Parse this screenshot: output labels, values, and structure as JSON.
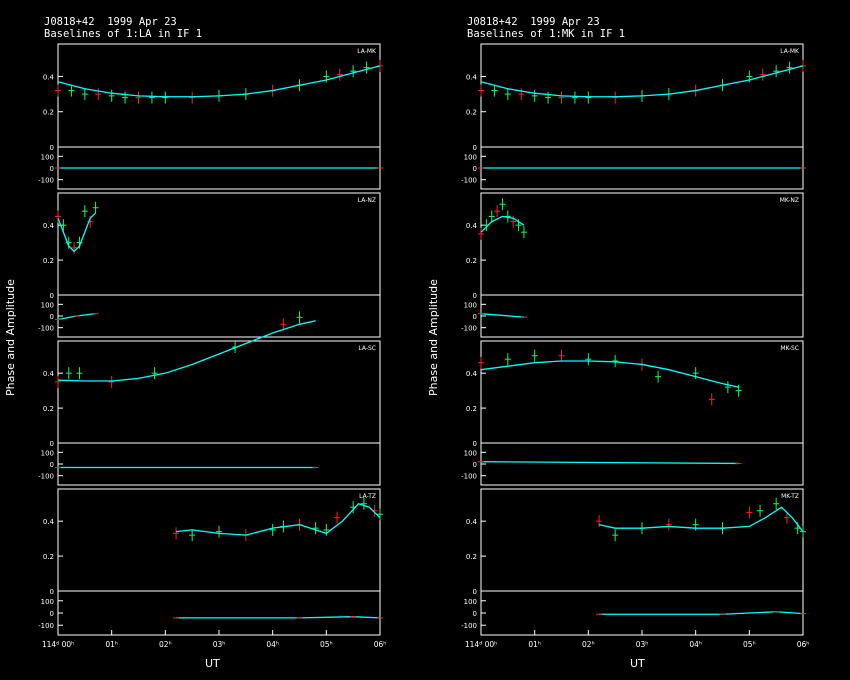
{
  "y_axis_label": "Phase and Amplitude",
  "x_axis_label": "UT",
  "colors": {
    "background": "#000000",
    "frame": "#ffffff",
    "model": "#00ffff",
    "good_points": "#00ff66",
    "flagged_points": "#ff2020"
  },
  "panels": [
    {
      "source_label": "J0818+42  1999 Apr 23",
      "title": "Baselines of 1:LA in IF 1",
      "x_ticks": [
        "114ᵈ 00ʰ",
        "01ʰ",
        "02ʰ",
        "03ʰ",
        "04ʰ",
        "05ʰ",
        "06ʰ"
      ]
    },
    {
      "source_label": "J0818+42  1999 Apr 23",
      "title": "Baselines of 1:MK in IF 1",
      "x_ticks": [
        "114ᵈ 00ʰ",
        "01ʰ",
        "02ʰ",
        "03ʰ",
        "04ʰ",
        "05ʰ",
        "06ʰ"
      ]
    }
  ],
  "chart_data": [
    {
      "type": "scatter",
      "title": "Baselines of 1:LA in IF 1",
      "xlabel": "UT",
      "ylabel": "Phase and Amplitude",
      "xlim": [
        0,
        6
      ],
      "baselines": [
        {
          "name": "LA-MK",
          "amp_ylim": [
            0,
            0.55
          ],
          "amp_ticks": [
            0,
            0.2,
            0.4
          ],
          "phase_ylim": [
            -180,
            180
          ],
          "phase_ticks": [
            100,
            0,
            -100
          ],
          "amp_model": {
            "x": [
              0,
              0.5,
              1,
              1.5,
              2,
              2.5,
              3,
              3.5,
              4,
              4.5,
              5,
              5.5,
              6
            ],
            "y": [
              0.37,
              0.33,
              0.305,
              0.29,
              0.285,
              0.285,
              0.29,
              0.3,
              0.32,
              0.35,
              0.38,
              0.42,
              0.46
            ]
          },
          "amp_points": {
            "x": [
              0,
              0.25,
              0.5,
              0.75,
              1,
              1.25,
              1.5,
              1.75,
              2,
              2.5,
              3,
              3.5,
              4,
              4.5,
              5,
              5.25,
              5.5,
              5.75,
              6
            ],
            "y": [
              0.32,
              0.32,
              0.3,
              0.3,
              0.29,
              0.28,
              0.28,
              0.28,
              0.28,
              0.28,
              0.29,
              0.3,
              0.32,
              0.35,
              0.4,
              0.41,
              0.43,
              0.45,
              0.46
            ]
          },
          "phase_model": {
            "x": [
              0,
              6
            ],
            "y": [
              0,
              0
            ]
          }
        },
        {
          "name": "LA-NZ",
          "amp_ylim": [
            0,
            0.55
          ],
          "amp_ticks": [
            0,
            0.2,
            0.4
          ],
          "phase_ylim": [
            -180,
            180
          ],
          "phase_ticks": [
            100,
            0,
            -100
          ],
          "amp_model": {
            "x": [
              0,
              0.1,
              0.2,
              0.3,
              0.4,
              0.5,
              0.6,
              0.7
            ],
            "y": [
              0.44,
              0.36,
              0.28,
              0.25,
              0.28,
              0.36,
              0.44,
              0.47
            ]
          },
          "amp_points": {
            "x": [
              0,
              0.1,
              0.2,
              0.3,
              0.4,
              0.5,
              0.6,
              0.7
            ],
            "y": [
              0.45,
              0.4,
              0.3,
              0.27,
              0.3,
              0.48,
              0.42,
              0.5
            ]
          },
          "phase_model": {
            "x": [
              0,
              0.35,
              0.7
            ],
            "y": [
              -30,
              0,
              20
            ]
          }
        },
        {
          "name": "LA-SC",
          "amp_ylim": [
            0,
            0.55
          ],
          "amp_ticks": [
            0,
            0.2,
            0.4
          ],
          "phase_ylim": [
            -180,
            180
          ],
          "phase_ticks": [
            100,
            0,
            -100
          ],
          "amp_model": {
            "x": [
              0,
              0.5,
              1,
              1.5,
              2,
              2.5,
              3,
              3.5,
              4,
              4.5,
              4.8
            ],
            "y": [
              0.36,
              0.355,
              0.355,
              0.37,
              0.4,
              0.45,
              0.51,
              0.57,
              0.63,
              0.68,
              0.7
            ]
          },
          "amp_points": {
            "x": [
              0,
              0.2,
              0.4,
              1,
              1.8,
              3.3,
              4.2,
              4.5
            ],
            "y": [
              0.35,
              0.4,
              0.4,
              0.35,
              0.4,
              0.55,
              0.68,
              0.72
            ]
          },
          "phase_model": {
            "x": [
              0,
              4.8
            ],
            "y": [
              -30,
              -30
            ]
          }
        },
        {
          "name": "LA-TZ",
          "amp_ylim": [
            0,
            0.55
          ],
          "amp_ticks": [
            0,
            0.2,
            0.4
          ],
          "phase_ylim": [
            -180,
            180
          ],
          "phase_ticks": [
            100,
            0,
            -100
          ],
          "amp_model": {
            "x": [
              2.2,
              2.5,
              3,
              3.5,
              4,
              4.5,
              5,
              5.3,
              5.6,
              5.8,
              6
            ],
            "y": [
              0.34,
              0.35,
              0.33,
              0.32,
              0.36,
              0.38,
              0.33,
              0.4,
              0.5,
              0.48,
              0.42
            ]
          },
          "amp_points": {
            "x": [
              2.2,
              2.5,
              3,
              3.5,
              4,
              4.2,
              4.5,
              4.8,
              5,
              5.2,
              5.5,
              5.7,
              5.9,
              6
            ],
            "y": [
              0.33,
              0.32,
              0.34,
              0.32,
              0.35,
              0.37,
              0.38,
              0.36,
              0.35,
              0.42,
              0.48,
              0.5,
              0.46,
              0.44
            ]
          },
          "phase_model": {
            "x": [
              2.2,
              4.5,
              5.5,
              6
            ],
            "y": [
              -40,
              -40,
              -30,
              -40
            ]
          }
        }
      ]
    },
    {
      "type": "scatter",
      "title": "Baselines of 1:MK in IF 1",
      "xlabel": "UT",
      "ylabel": "Phase and Amplitude",
      "xlim": [
        0,
        6
      ],
      "baselines": [
        {
          "name": "LA-MK",
          "amp_ylim": [
            0,
            0.55
          ],
          "amp_ticks": [
            0,
            0.2,
            0.4
          ],
          "phase_ylim": [
            -180,
            180
          ],
          "phase_ticks": [
            100,
            0,
            -100
          ],
          "amp_model": {
            "x": [
              0,
              0.5,
              1,
              1.5,
              2,
              2.5,
              3,
              3.5,
              4,
              4.5,
              5,
              5.5,
              6
            ],
            "y": [
              0.37,
              0.33,
              0.305,
              0.29,
              0.285,
              0.285,
              0.29,
              0.3,
              0.32,
              0.35,
              0.38,
              0.42,
              0.46
            ]
          },
          "amp_points": {
            "x": [
              0,
              0.25,
              0.5,
              0.75,
              1,
              1.25,
              1.5,
              1.75,
              2,
              2.5,
              3,
              3.5,
              4,
              4.5,
              5,
              5.25,
              5.5,
              5.75,
              6
            ],
            "y": [
              0.32,
              0.32,
              0.3,
              0.3,
              0.29,
              0.28,
              0.28,
              0.28,
              0.28,
              0.28,
              0.29,
              0.3,
              0.32,
              0.35,
              0.4,
              0.41,
              0.43,
              0.45,
              0.46
            ]
          },
          "phase_model": {
            "x": [
              0,
              6
            ],
            "y": [
              0,
              0
            ]
          }
        },
        {
          "name": "MK-NZ",
          "amp_ylim": [
            0,
            0.55
          ],
          "amp_ticks": [
            0,
            0.2,
            0.4
          ],
          "phase_ylim": [
            -180,
            180
          ],
          "phase_ticks": [
            100,
            0,
            -100
          ],
          "amp_model": {
            "x": [
              0,
              0.2,
              0.4,
              0.6,
              0.8
            ],
            "y": [
              0.36,
              0.42,
              0.45,
              0.44,
              0.4
            ]
          },
          "amp_points": {
            "x": [
              0,
              0.1,
              0.2,
              0.3,
              0.4,
              0.5,
              0.6,
              0.7,
              0.8
            ],
            "y": [
              0.35,
              0.4,
              0.45,
              0.48,
              0.52,
              0.45,
              0.42,
              0.4,
              0.36
            ]
          },
          "phase_model": {
            "x": [
              0,
              0.8
            ],
            "y": [
              20,
              -10
            ]
          }
        },
        {
          "name": "MK-SC",
          "amp_ylim": [
            0,
            0.55
          ],
          "amp_ticks": [
            0,
            0.2,
            0.4
          ],
          "phase_ylim": [
            -180,
            180
          ],
          "phase_ticks": [
            100,
            0,
            -100
          ],
          "amp_model": {
            "x": [
              0,
              0.5,
              1,
              1.5,
              2,
              2.5,
              3,
              3.5,
              4,
              4.5,
              4.8
            ],
            "y": [
              0.42,
              0.44,
              0.46,
              0.47,
              0.47,
              0.465,
              0.45,
              0.42,
              0.38,
              0.34,
              0.32
            ]
          },
          "amp_points": {
            "x": [
              0,
              0.5,
              1,
              1.5,
              2,
              2.5,
              3,
              3.3,
              4,
              4.3,
              4.6,
              4.8
            ],
            "y": [
              0.46,
              0.48,
              0.5,
              0.5,
              0.48,
              0.47,
              0.45,
              0.38,
              0.4,
              0.25,
              0.32,
              0.3
            ]
          },
          "phase_model": {
            "x": [
              0,
              4.8
            ],
            "y": [
              20,
              5
            ]
          }
        },
        {
          "name": "MK-TZ",
          "amp_ylim": [
            0,
            0.55
          ],
          "amp_ticks": [
            0,
            0.2,
            0.4
          ],
          "phase_ylim": [
            -180,
            180
          ],
          "phase_ticks": [
            100,
            0,
            -100
          ],
          "amp_model": {
            "x": [
              2.2,
              2.5,
              3,
              3.5,
              4,
              4.5,
              5,
              5.3,
              5.6,
              5.8,
              6
            ],
            "y": [
              0.38,
              0.36,
              0.36,
              0.37,
              0.36,
              0.36,
              0.37,
              0.42,
              0.48,
              0.42,
              0.34
            ]
          },
          "amp_points": {
            "x": [
              2.2,
              2.5,
              3,
              3.5,
              4,
              4.5,
              5,
              5.2,
              5.5,
              5.7,
              5.9,
              6
            ],
            "y": [
              0.4,
              0.32,
              0.36,
              0.38,
              0.38,
              0.36,
              0.45,
              0.46,
              0.5,
              0.42,
              0.36,
              0.34
            ]
          },
          "phase_model": {
            "x": [
              2.2,
              4.5,
              5.5,
              6
            ],
            "y": [
              -10,
              -10,
              10,
              -5
            ]
          }
        }
      ]
    }
  ]
}
